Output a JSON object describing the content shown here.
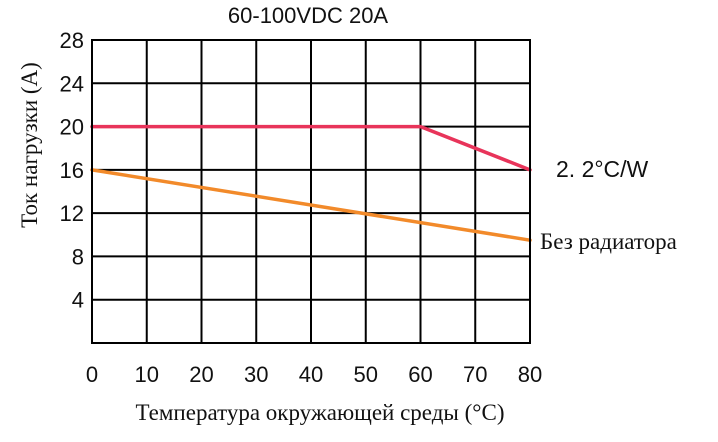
{
  "chart_data": {
    "type": "line",
    "title": "60-100VDC 20A",
    "xlabel": "Температура окружающей среды (°C)",
    "ylabel": "Ток нагрузки (A)",
    "xlim": [
      0,
      80
    ],
    "ylim": [
      0,
      28
    ],
    "x_ticks": [
      "0",
      "10",
      "20",
      "30",
      "40",
      "50",
      "60",
      "70",
      "80"
    ],
    "y_ticks": [
      "4",
      "8",
      "12",
      "16",
      "20",
      "24",
      "28"
    ],
    "grid": true,
    "series": [
      {
        "name": "2. 2°C/W",
        "color": "#e8345a",
        "points": [
          [
            0,
            20
          ],
          [
            60,
            20
          ],
          [
            80,
            16
          ]
        ]
      },
      {
        "name": "Без радиатора",
        "color": "#f28a2a",
        "points": [
          [
            0,
            16
          ],
          [
            80,
            9.5
          ]
        ]
      }
    ]
  }
}
